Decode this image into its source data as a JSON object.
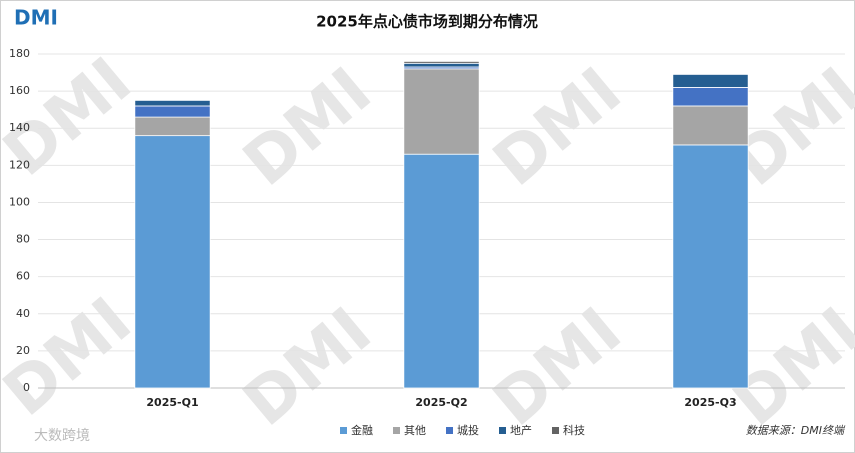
{
  "logo": "DMI",
  "watermark": "DMI",
  "bottom_logo": "大数跨境",
  "source": "数据来源：DMI终端",
  "chart_data": {
    "type": "stacked-bar",
    "title": "2025年点心债市场到期分布情况",
    "categories": [
      "2025-Q1",
      "2025-Q2",
      "2025-Q3"
    ],
    "series": [
      {
        "name": "金融",
        "color": "#5b9bd5",
        "values": [
          136,
          126,
          131
        ]
      },
      {
        "name": "其他",
        "color": "#a5a5a5",
        "values": [
          10,
          46,
          21
        ]
      },
      {
        "name": "城投",
        "color": "#4472c4",
        "values": [
          6,
          1,
          10
        ]
      },
      {
        "name": "地产",
        "color": "#255e91",
        "values": [
          3,
          2,
          7
        ]
      },
      {
        "name": "科技",
        "color": "#636363",
        "values": [
          0,
          1,
          0
        ]
      }
    ],
    "ylim": [
      0,
      180
    ],
    "yticks": [
      0,
      20,
      40,
      60,
      80,
      100,
      120,
      140,
      160,
      180
    ],
    "grid": true
  }
}
